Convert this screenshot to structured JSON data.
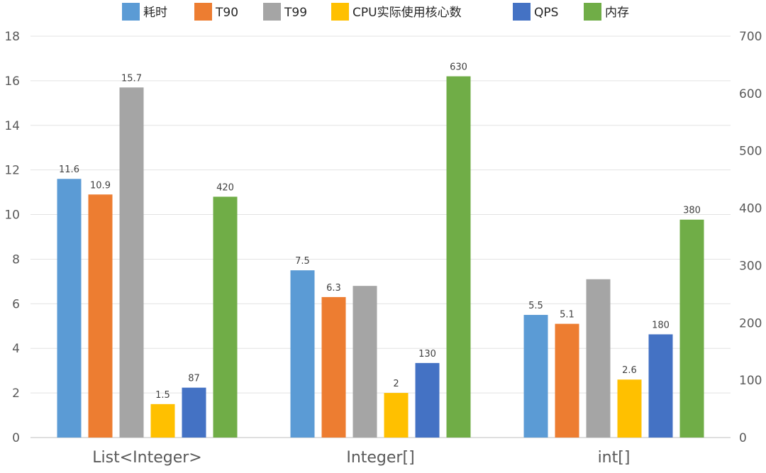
{
  "chart_data": {
    "type": "bar",
    "categories": [
      "List<Integer>",
      "Integer[]",
      "int[]"
    ],
    "series": [
      {
        "name": "耗时",
        "axis": "left",
        "color": "#5B9BD5",
        "values": [
          11.6,
          7.5,
          5.5
        ],
        "labels": [
          "11.6",
          "7.5",
          "5.5"
        ]
      },
      {
        "name": "T90",
        "axis": "left",
        "color": "#ED7D31",
        "values": [
          10.9,
          6.3,
          5.1
        ],
        "labels": [
          "10.9",
          "6.3",
          "5.1"
        ]
      },
      {
        "name": "T99",
        "axis": "left",
        "color": "#A5A5A5",
        "values": [
          15.7,
          6.8,
          7.1
        ],
        "labels": [
          "15.7",
          "",
          ""
        ]
      },
      {
        "name": "CPU实际使用核心数",
        "axis": "left",
        "color": "#FFC000",
        "values": [
          1.5,
          2,
          2.6
        ],
        "labels": [
          "1.5",
          "2",
          "2.6"
        ]
      },
      {
        "name": "QPS",
        "axis": "right",
        "color": "#4472C4",
        "values": [
          87,
          130,
          180
        ],
        "labels": [
          "87",
          "130",
          "180"
        ]
      },
      {
        "name": "内存",
        "axis": "right",
        "color": "#70AD47",
        "values": [
          420,
          630,
          380
        ],
        "labels": [
          "420",
          "630",
          "380"
        ]
      }
    ],
    "y_left": {
      "ylim": [
        0,
        18
      ],
      "ticks": [
        "0",
        "2",
        "4",
        "6",
        "8",
        "10",
        "12",
        "14",
        "16",
        "18"
      ]
    },
    "y_right": {
      "ylim": [
        0,
        700
      ],
      "ticks": [
        "0",
        "100",
        "200",
        "300",
        "400",
        "500",
        "600",
        "700"
      ]
    },
    "grid": true,
    "legend": "top"
  }
}
